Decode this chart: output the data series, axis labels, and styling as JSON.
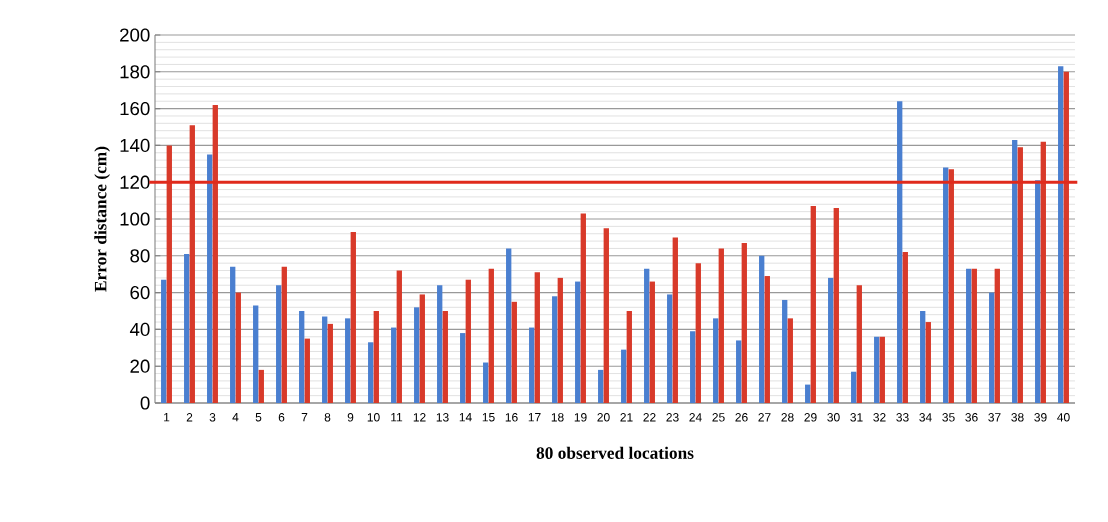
{
  "chart_data": {
    "type": "bar",
    "xlabel": "80 observed locations",
    "ylabel": "Error distance (cm)",
    "categories": [
      "1",
      "2",
      "3",
      "4",
      "5",
      "6",
      "7",
      "8",
      "9",
      "10",
      "11",
      "12",
      "13",
      "14",
      "15",
      "16",
      "17",
      "18",
      "19",
      "20",
      "21",
      "22",
      "23",
      "24",
      "25",
      "26",
      "27",
      "28",
      "29",
      "30",
      "31",
      "32",
      "33",
      "34",
      "35",
      "36",
      "37",
      "38",
      "39",
      "40"
    ],
    "series": [
      {
        "color": "#4a7fd0",
        "values": [
          67,
          81,
          135,
          74,
          53,
          64,
          50,
          47,
          46,
          33,
          41,
          52,
          64,
          38,
          22,
          84,
          41,
          58,
          66,
          18,
          29,
          73,
          59,
          39,
          46,
          34,
          80,
          56,
          10,
          68,
          17,
          36,
          164,
          50,
          128,
          73,
          60,
          143,
          121,
          183
        ]
      },
      {
        "color": "#d83a2a",
        "values": [
          140,
          151,
          162,
          60,
          18,
          74,
          35,
          43,
          93,
          50,
          72,
          59,
          50,
          67,
          73,
          55,
          71,
          68,
          103,
          95,
          50,
          66,
          90,
          76,
          84,
          87,
          69,
          46,
          107,
          106,
          64,
          36,
          82,
          44,
          127,
          73,
          73,
          139,
          142,
          180
        ]
      }
    ],
    "ylim": [
      0,
      200
    ],
    "yticks": [
      0,
      20,
      40,
      60,
      80,
      100,
      120,
      140,
      160,
      180,
      200
    ],
    "grid": "y",
    "ref_lines": [
      {
        "axis": "y",
        "value": 120,
        "color": "#e02a1c"
      }
    ]
  }
}
